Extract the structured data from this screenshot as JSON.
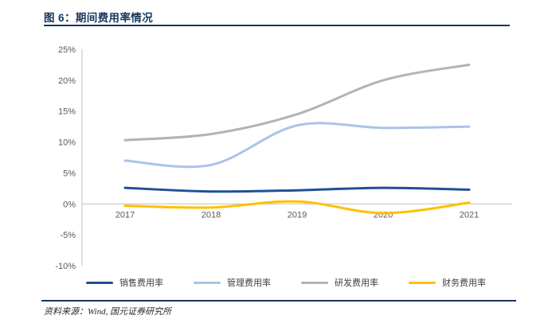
{
  "header": {
    "title": "图 6：期间费用率情况",
    "accent_color": "#17375E"
  },
  "footer": {
    "source": "资料来源：Wind, 国元证券研究所"
  },
  "chart_data": {
    "type": "line",
    "title": "图 6：期间费用率情况",
    "categories": [
      "2017",
      "2018",
      "2019",
      "2020",
      "2021"
    ],
    "series": [
      {
        "key": "sales-expense",
        "name": "销售费用率",
        "color": "#1F5096",
        "values": [
          2.6,
          2.0,
          2.2,
          2.6,
          2.3
        ]
      },
      {
        "key": "admin-expense",
        "name": "管理费用率",
        "color": "#A9C4E9",
        "values": [
          7.0,
          6.3,
          12.7,
          12.3,
          12.5
        ]
      },
      {
        "key": "rd-expense",
        "name": "研发费用率",
        "color": "#B3B3B3",
        "values": [
          10.3,
          11.3,
          14.5,
          20.0,
          22.5
        ]
      },
      {
        "key": "finance-expense",
        "name": "财务费用率",
        "color": "#FFC000",
        "values": [
          -0.3,
          -0.6,
          0.4,
          -1.5,
          0.2
        ]
      }
    ],
    "xlabel": "",
    "ylabel": "",
    "ylim": [
      -10,
      25
    ],
    "ytick_step": 5,
    "ytick_format": "percent",
    "grid": false,
    "axis_color": "#BFBFBF",
    "legend_position": "bottom"
  }
}
